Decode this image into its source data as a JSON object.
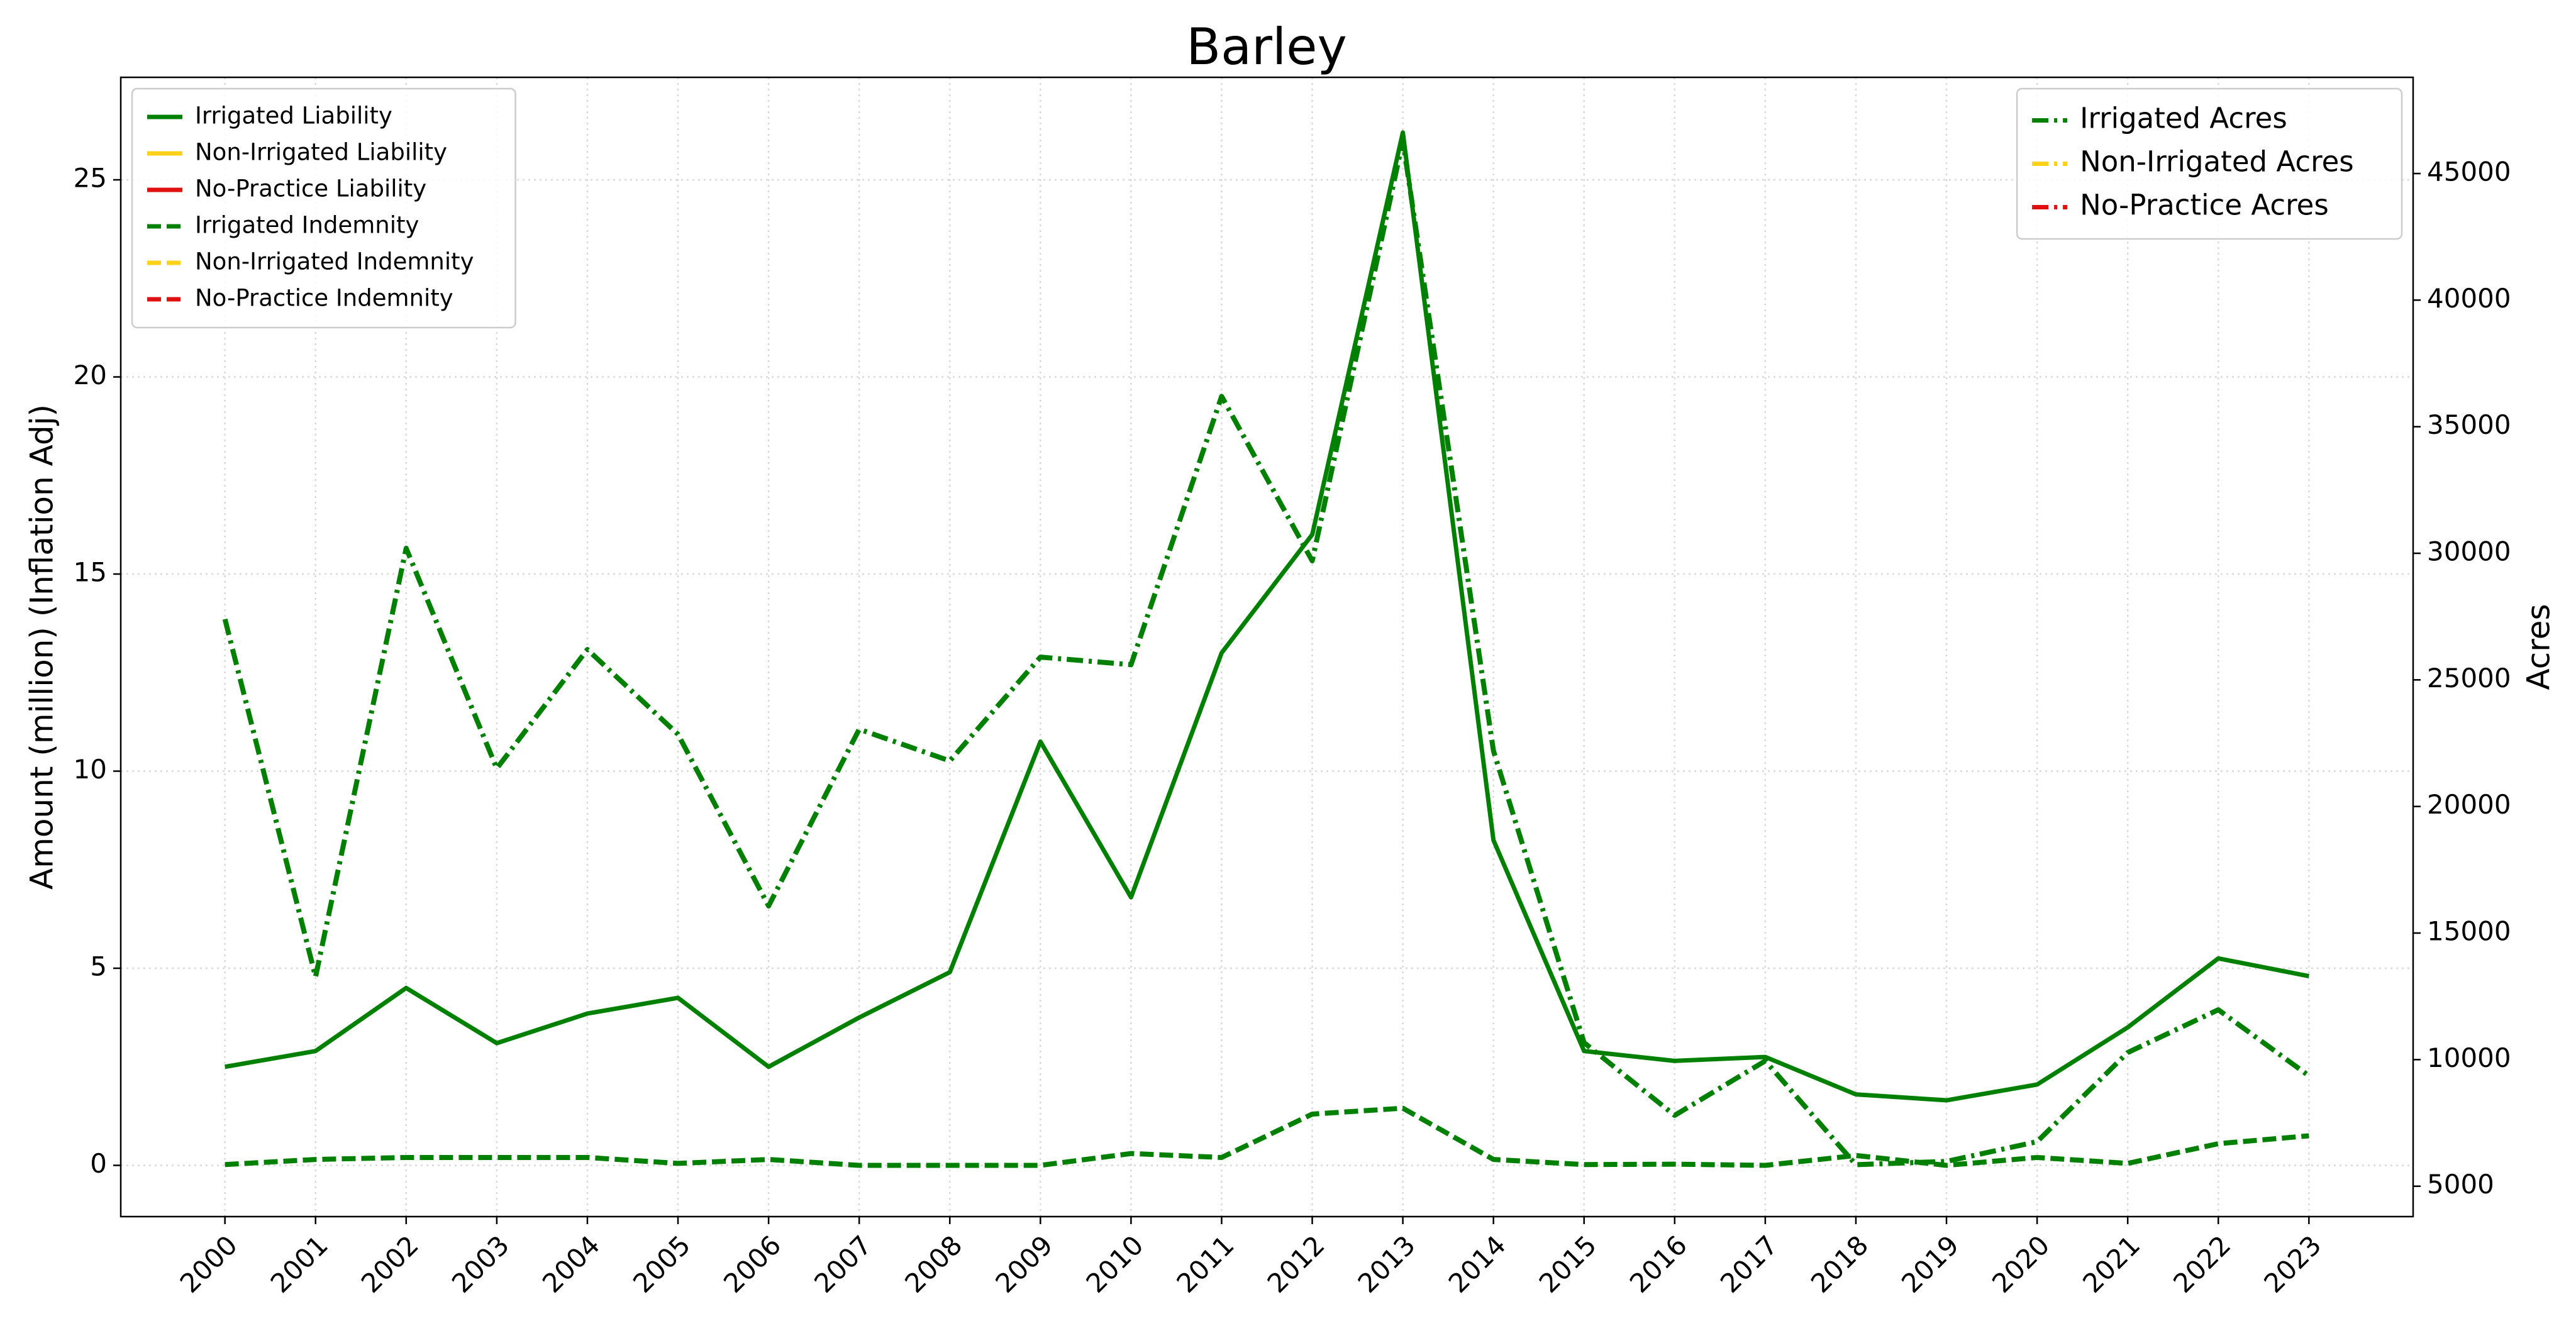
{
  "chart_data": {
    "type": "line",
    "title": "Barley",
    "y_label": "Amount (million) (Inflation Adj)",
    "y2_label": "Acres",
    "x": [
      2000,
      2001,
      2002,
      2003,
      2004,
      2005,
      2006,
      2007,
      2008,
      2009,
      2010,
      2011,
      2012,
      2013,
      2014,
      2015,
      2016,
      2017,
      2018,
      2019,
      2020,
      2021,
      2022,
      2023
    ],
    "xlim": [
      1998.85,
      2024.15
    ],
    "xticks": [
      2000,
      2001,
      2002,
      2003,
      2004,
      2005,
      2006,
      2007,
      2008,
      2009,
      2010,
      2011,
      2012,
      2013,
      2014,
      2015,
      2016,
      2017,
      2018,
      2019,
      2020,
      2021,
      2022,
      2023
    ],
    "ylim": [
      -1.3,
      27.6
    ],
    "yticks": [
      0,
      5,
      10,
      15,
      20,
      25
    ],
    "y2lim": [
      3800,
      48800
    ],
    "y2ticks": [
      5000,
      10000,
      15000,
      20000,
      25000,
      30000,
      35000,
      40000,
      45000
    ],
    "grid": true,
    "legend": "upper left",
    "legend2": "upper right",
    "series": [
      {
        "name": "Irrigated Liability",
        "color": "#008000",
        "linestyle": "solid",
        "values": [
          2.5,
          2.9,
          4.5,
          3.1,
          3.85,
          4.25,
          2.5,
          3.75,
          4.9,
          10.75,
          6.8,
          13.0,
          16.0,
          26.2,
          8.25,
          2.9,
          2.65,
          2.75,
          1.8,
          1.65,
          2.05,
          3.5,
          5.25,
          4.8
        ]
      },
      {
        "name": "Non-Irrigated Liability",
        "color": "#ffd11a",
        "linestyle": "solid",
        "values": [
          null,
          null,
          null,
          null,
          null,
          null,
          null,
          null,
          null,
          null,
          null,
          null,
          null,
          null,
          null,
          null,
          null,
          null,
          null,
          null,
          null,
          null,
          null,
          null
        ]
      },
      {
        "name": "No-Practice Liability",
        "color": "#e01010",
        "linestyle": "solid",
        "values": [
          null,
          null,
          null,
          null,
          null,
          null,
          null,
          null,
          null,
          null,
          null,
          null,
          null,
          null,
          null,
          null,
          null,
          null,
          null,
          null,
          null,
          null,
          null,
          null
        ]
      },
      {
        "name": "Irrigated Indemnity",
        "color": "#008000",
        "linestyle": "dashed",
        "values": [
          0.02,
          0.15,
          0.2,
          0.2,
          0.2,
          0.05,
          0.15,
          0,
          0,
          0,
          0.3,
          0.2,
          1.3,
          1.45,
          0.15,
          0.02,
          0.03,
          0,
          0.25,
          0,
          0.2,
          0.05,
          0.55,
          0.75
        ]
      },
      {
        "name": "Non-Irrigated Indemnity",
        "color": "#ffd11a",
        "linestyle": "dashed",
        "values": [
          null,
          null,
          null,
          null,
          null,
          null,
          null,
          null,
          null,
          null,
          null,
          null,
          null,
          null,
          null,
          null,
          null,
          null,
          null,
          null,
          null,
          null,
          null,
          null
        ]
      },
      {
        "name": "No-Practice Indemnity",
        "color": "#e01010",
        "linestyle": "dashed",
        "values": [
          null,
          null,
          null,
          null,
          null,
          null,
          null,
          null,
          null,
          null,
          null,
          null,
          null,
          null,
          null,
          null,
          null,
          null,
          null,
          null,
          null,
          null,
          null,
          null
        ]
      },
      {
        "name": "Irrigated Acres",
        "color": "#008000",
        "linestyle": "dashdot",
        "axis": "y2",
        "values": [
          27400,
          13270,
          30200,
          21500,
          26200,
          22850,
          16070,
          23050,
          21800,
          25900,
          25600,
          36200,
          29700,
          46300,
          22200,
          10670,
          7800,
          9950,
          5850,
          5980,
          6760,
          10280,
          11970,
          9360
        ]
      },
      {
        "name": "Non-Irrigated Acres",
        "color": "#ffd11a",
        "linestyle": "dashdot",
        "axis": "y2",
        "values": [
          null,
          null,
          null,
          null,
          null,
          null,
          null,
          null,
          null,
          null,
          null,
          null,
          null,
          null,
          null,
          null,
          null,
          null,
          null,
          null,
          null,
          null,
          null,
          null
        ]
      },
      {
        "name": "No-Practice Acres",
        "color": "#e01010",
        "linestyle": "dashdot",
        "axis": "y2",
        "values": [
          null,
          null,
          null,
          null,
          null,
          null,
          null,
          null,
          null,
          null,
          null,
          null,
          null,
          null,
          null,
          null,
          null,
          null,
          null,
          null,
          null,
          null,
          null,
          null
        ]
      }
    ]
  }
}
